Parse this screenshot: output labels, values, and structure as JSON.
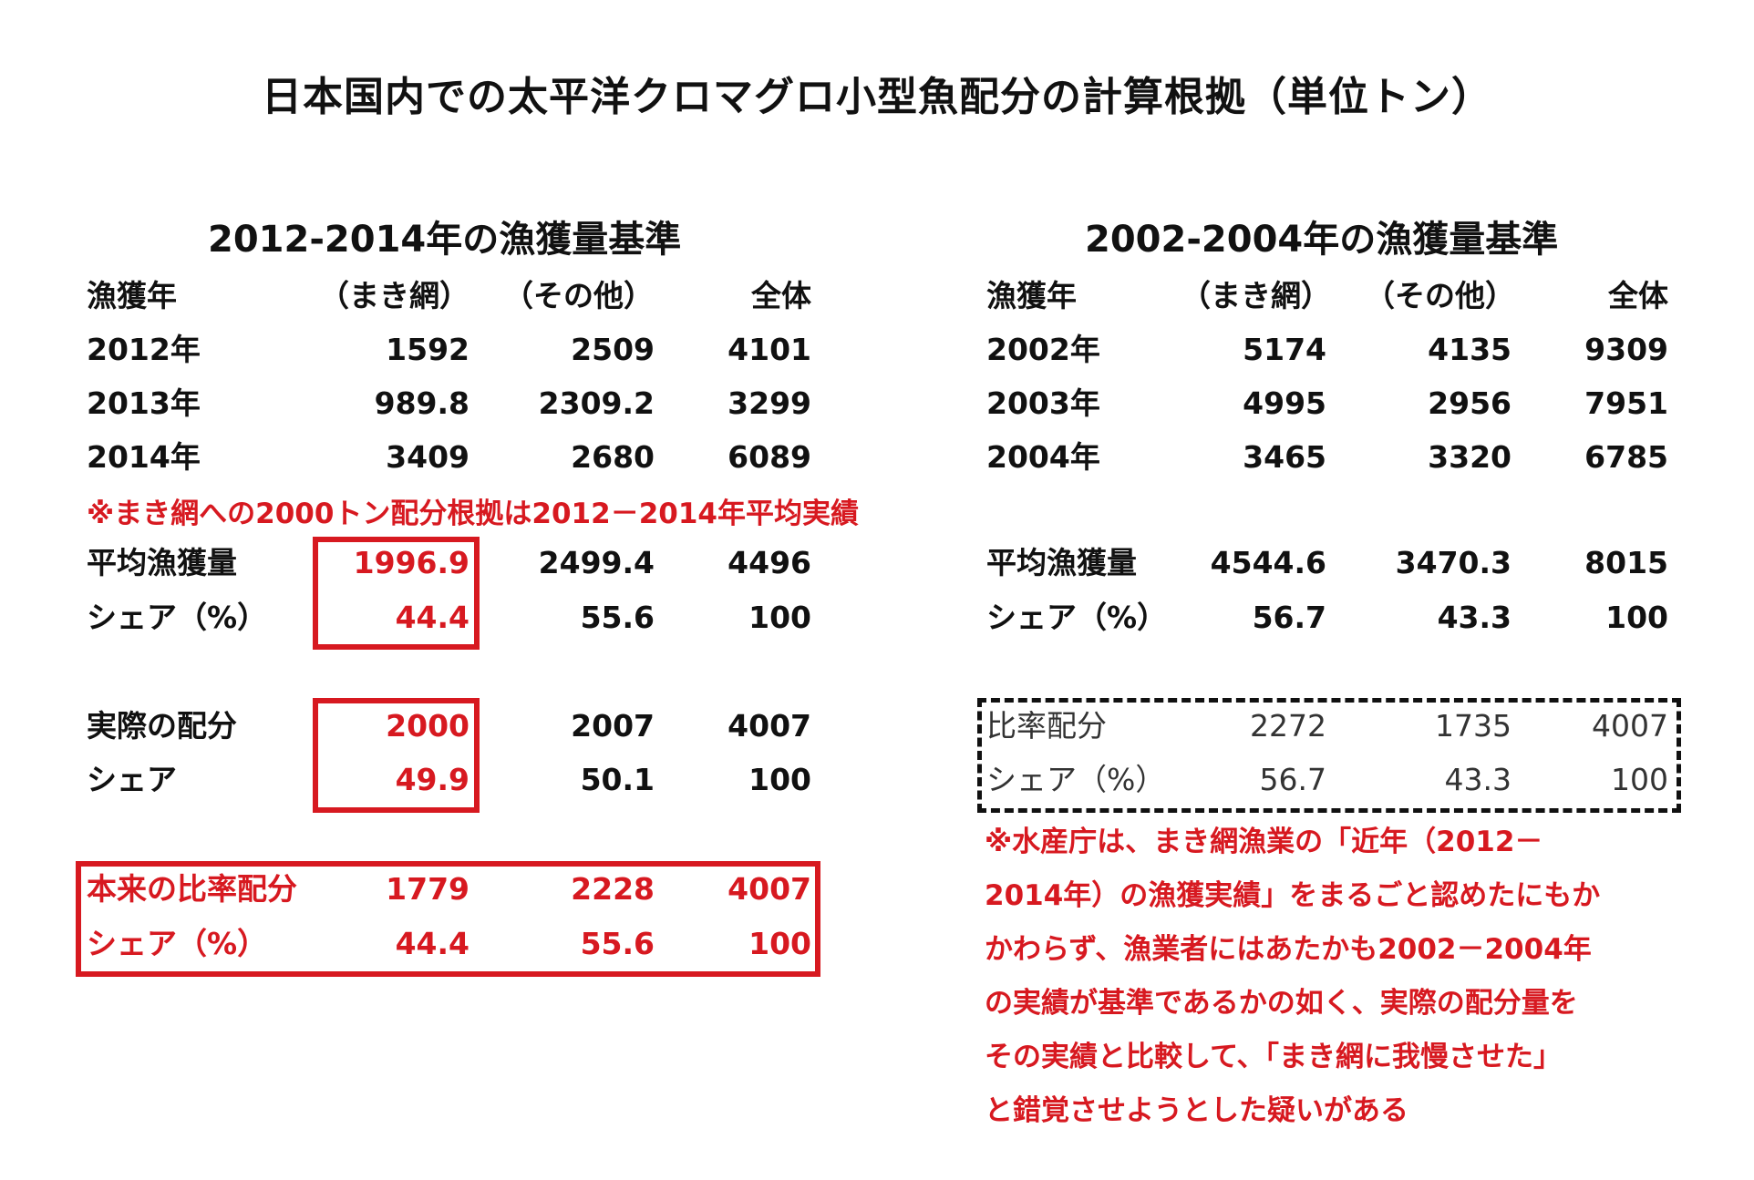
{
  "title": "日本国内での太平洋クロマグロ小型魚配分の計算根拠（単位トン）",
  "left": {
    "heading": "2012-2014年の漁獲量基準",
    "headers": [
      "漁獲年",
      "（まき網）",
      "（その他）",
      "全体"
    ],
    "rows": [
      [
        "2012年",
        "1592",
        "2509",
        "4101"
      ],
      [
        "2013年",
        "989.8",
        "2309.2",
        "3299"
      ],
      [
        "2014年",
        "3409",
        "2680",
        "6089"
      ]
    ],
    "note": "※まき網への2000トン配分根拠は2012－2014年平均実績",
    "avg": [
      "平均漁獲量",
      "1996.9",
      "2499.4",
      "4496"
    ],
    "share": [
      "シェア（%）",
      "44.4",
      "55.6",
      "100"
    ],
    "actual": [
      "実際の配分",
      "2000",
      "2007",
      "4007"
    ],
    "actual_share": [
      "シェア",
      "49.9",
      "50.1",
      "100"
    ],
    "proper": [
      "本来の比率配分",
      "1779",
      "2228",
      "4007"
    ],
    "proper_share": [
      "シェア（%）",
      "44.4",
      "55.6",
      "100"
    ]
  },
  "right": {
    "heading": "2002-2004年の漁獲量基準",
    "headers": [
      "漁獲年",
      "（まき網）",
      "（その他）",
      "全体"
    ],
    "rows": [
      [
        "2002年",
        "5174",
        "4135",
        "9309"
      ],
      [
        "2003年",
        "4995",
        "2956",
        "7951"
      ],
      [
        "2004年",
        "3465",
        "3320",
        "6785"
      ]
    ],
    "avg": [
      "平均漁獲量",
      "4544.6",
      "3470.3",
      "8015"
    ],
    "share": [
      "シェア（%）",
      "56.7",
      "43.3",
      "100"
    ],
    "ratio": [
      "比率配分",
      "2272",
      "1735",
      "4007"
    ],
    "ratio_share": [
      "シェア（%）",
      "56.7",
      "43.3",
      "100"
    ],
    "note_lines": [
      "※水産庁は、まき網漁業の「近年（2012－",
      "2014年）の漁獲実績」をまるごと認めたにもか",
      "かわらず、漁業者にはあたかも2002－2004年",
      "の実績が基準であるかの如く、実際の配分量を",
      "その実績と比較して、「まき網に我慢させた」",
      "と錯覚させようとした疑いがある"
    ]
  },
  "colors": {
    "accent": "#d71920",
    "text": "#111111"
  }
}
